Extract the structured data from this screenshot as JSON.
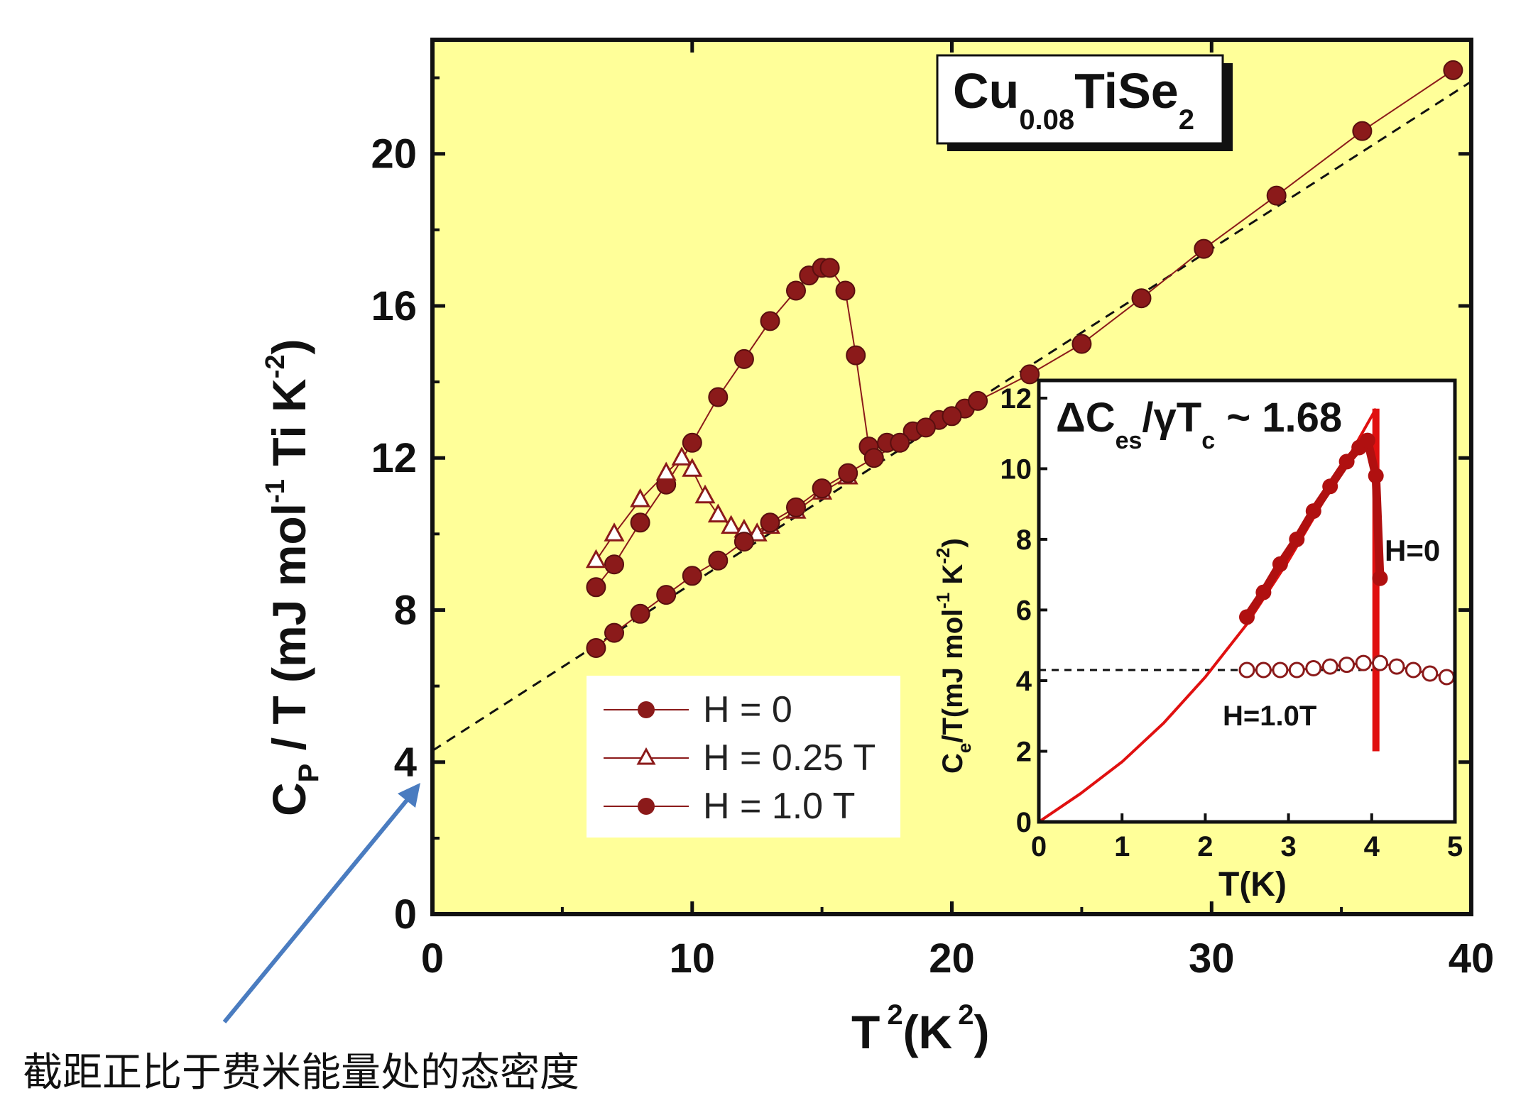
{
  "chart_data": [
    {
      "type": "scatter",
      "title": "Cu0.08TiSe2",
      "title_parts": {
        "base1": "Cu",
        "sub1": "0.08",
        "base2": "TiSe",
        "sub2": "2"
      },
      "xlabel": "T 2(K 2)",
      "xlabel_parts": {
        "t": "T",
        "sup1": "2",
        "k": "(K",
        "sup2": "2",
        "close": ")"
      },
      "ylabel": "CP / T (mJ mol-1 Ti K-2)",
      "ylabel_parts": {
        "c": "C",
        "sub": "P",
        "mid": " / T (mJ mol",
        "sup1": "-1",
        "mid2": " Ti K",
        "sup2": "-2",
        "close": ")"
      },
      "xlim": [
        0,
        40
      ],
      "ylim": [
        0,
        23
      ],
      "xticks": [
        "0",
        "10",
        "20",
        "30",
        "40"
      ],
      "yticks": [
        "0",
        "4",
        "8",
        "12",
        "16",
        "20"
      ],
      "series": [
        {
          "name": "H = 0",
          "marker": "filled-circle",
          "color": "#8b1a1a",
          "x": [
            6.3,
            7,
            8,
            9,
            10,
            11,
            12,
            13,
            14,
            14.5,
            15,
            15.3,
            15.9,
            16.3,
            16.8,
            17.5,
            18.5,
            19.5,
            20.5
          ],
          "y": [
            8.6,
            9.2,
            10.3,
            11.3,
            12.4,
            13.6,
            14.6,
            15.6,
            16.4,
            16.8,
            17.0,
            17.0,
            16.4,
            14.7,
            12.3,
            12.4,
            12.7,
            13.0,
            13.3
          ]
        },
        {
          "name": "H = 0.25 T",
          "marker": "open-triangle",
          "color": "#8b1a1a",
          "x": [
            6.3,
            7,
            8,
            9,
            9.6,
            10,
            10.5,
            11,
            11.5,
            12,
            12.5,
            13,
            14,
            15,
            16
          ],
          "y": [
            9.3,
            10.0,
            10.9,
            11.6,
            12.0,
            11.7,
            11.0,
            10.5,
            10.2,
            10.1,
            10.0,
            10.2,
            10.6,
            11.1,
            11.5
          ]
        },
        {
          "name": "H = 1.0 T",
          "marker": "filled-circle",
          "color": "#8b1a1a",
          "x": [
            6.3,
            7,
            8,
            9,
            10,
            11,
            12,
            13,
            14,
            15,
            16,
            17,
            18,
            19,
            20,
            21,
            23,
            25,
            27.3,
            29.7,
            32.5,
            35.8,
            39.3
          ],
          "y": [
            7.0,
            7.4,
            7.9,
            8.4,
            8.9,
            9.3,
            9.8,
            10.3,
            10.7,
            11.2,
            11.6,
            12.0,
            12.4,
            12.8,
            13.1,
            13.5,
            14.2,
            15.0,
            16.2,
            17.5,
            18.9,
            20.6,
            22.2
          ]
        }
      ],
      "fit_line": {
        "x": [
          0,
          40
        ],
        "y": [
          4.3,
          21.9
        ]
      },
      "legend": {
        "placement": "lower-center",
        "entries": [
          "H = 0",
          "H = 0.25 T",
          "H = 1.0 T"
        ]
      }
    },
    {
      "type": "line",
      "title": "ΔCes/γTc ~ 1.68",
      "title_parts": {
        "a": "ΔC",
        "sub1": "es",
        "b": "/γT",
        "sub2": "c",
        "c": " ~ 1.68"
      },
      "xlabel": "T(K)",
      "ylabel": "Ce/T(mJ mol-1 K-2)",
      "ylabel_parts": {
        "c": "C",
        "sub": "e",
        "mid": "/T(mJ mol",
        "sup1": "-1",
        "mid2": " K",
        "sup2": "-2",
        "close": ")"
      },
      "xlim": [
        0,
        5
      ],
      "ylim": [
        0,
        12.5
      ],
      "xticks": [
        "0",
        "1",
        "2",
        "3",
        "4",
        "5"
      ],
      "yticks": [
        "0",
        "2",
        "4",
        "6",
        "8",
        "10",
        "12"
      ],
      "series": [
        {
          "name": "H=0",
          "marker": "filled-circle",
          "color": "#b01010",
          "x": [
            2.5,
            2.7,
            2.9,
            3.1,
            3.3,
            3.5,
            3.7,
            3.85,
            3.95,
            4.05,
            4.1
          ],
          "y": [
            5.8,
            6.5,
            7.3,
            8.0,
            8.8,
            9.5,
            10.2,
            10.6,
            10.8,
            9.8,
            6.9
          ]
        },
        {
          "name": "H=1.0T",
          "marker": "open-circle",
          "color": "#8b1a1a",
          "x": [
            2.5,
            2.7,
            2.9,
            3.1,
            3.3,
            3.5,
            3.7,
            3.9,
            4.1,
            4.3,
            4.5,
            4.7,
            4.9
          ],
          "y": [
            4.3,
            4.3,
            4.3,
            4.3,
            4.35,
            4.4,
            4.45,
            4.5,
            4.5,
            4.4,
            4.3,
            4.2,
            4.1
          ]
        }
      ],
      "bcs_curve": {
        "x": [
          0,
          0.5,
          1,
          1.5,
          2,
          2.5,
          3,
          3.5,
          4.05
        ],
        "y": [
          0,
          0.8,
          1.7,
          2.8,
          4.1,
          5.6,
          7.4,
          9.4,
          11.7
        ]
      },
      "jump_line": {
        "x": [
          4.05,
          4.05
        ],
        "y": [
          11.7,
          2.0
        ]
      },
      "normal_state_line": {
        "x": [
          0,
          4.1
        ],
        "y": [
          4.3,
          4.3
        ]
      },
      "annotations": [
        "H=0",
        "H=1.0T"
      ]
    }
  ],
  "annotation_note": "截距正比于费米能量处的态密度",
  "colors": {
    "plot_bg": "#ffff99",
    "data": "#8b1a1a",
    "fit": "#e01010",
    "arrow": "#4a7cc0"
  }
}
